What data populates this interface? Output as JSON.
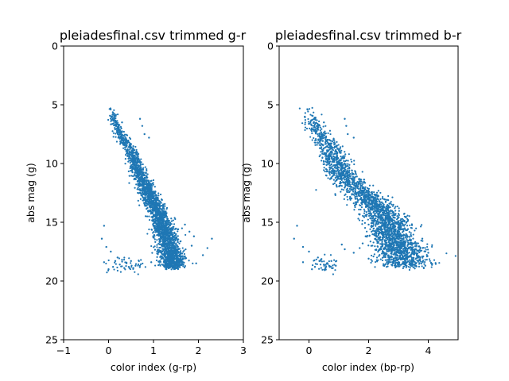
{
  "chart_data": [
    {
      "type": "scatter",
      "title": "pleiadesfinal.csv trimmed g-r",
      "xlabel": "color index (g-rp)",
      "ylabel": "abs mag (g)",
      "xlim": [
        -1,
        3
      ],
      "ylim": [
        25,
        0
      ],
      "y_inverted": true,
      "xticks": [
        "−1",
        "0",
        "1",
        "2",
        "3"
      ],
      "yticks": [
        "0",
        "5",
        "10",
        "15",
        "20",
        "25"
      ],
      "grid": false,
      "legend": "none",
      "series": [
        {
          "color": "#1f77b4",
          "main_sequence": [
            [
              0.05,
              5.2
            ],
            [
              0.1,
              5.6
            ],
            [
              0.12,
              6.3
            ],
            [
              0.2,
              7.0
            ],
            [
              0.3,
              7.8
            ],
            [
              0.4,
              8.3
            ],
            [
              0.5,
              8.9
            ],
            [
              0.55,
              9.5
            ],
            [
              0.6,
              10.0
            ],
            [
              0.65,
              10.6
            ],
            [
              0.72,
              11.2
            ],
            [
              0.8,
              11.8
            ],
            [
              0.88,
              12.4
            ],
            [
              0.95,
              13.0
            ],
            [
              1.02,
              13.6
            ],
            [
              1.1,
              14.2
            ],
            [
              1.17,
              14.8
            ],
            [
              1.22,
              15.4
            ],
            [
              1.27,
              16.0
            ],
            [
              1.31,
              16.6
            ],
            [
              1.35,
              17.2
            ],
            [
              1.38,
              17.8
            ],
            [
              1.41,
              18.3
            ],
            [
              1.43,
              18.9
            ]
          ],
          "main_sequence_scatter_width": 0.09,
          "outliers": [
            [
              0.7,
              6.2
            ],
            [
              0.75,
              6.8
            ],
            [
              0.8,
              7.5
            ],
            [
              0.9,
              7.8
            ],
            [
              0.3,
              6.5
            ],
            [
              0.2,
              6.9
            ],
            [
              1.7,
              15.2
            ],
            [
              1.8,
              15.8
            ],
            [
              1.9,
              16.2
            ],
            [
              2.3,
              16.4
            ],
            [
              2.2,
              17.2
            ],
            [
              1.6,
              17.6
            ],
            [
              1.7,
              18.1
            ],
            [
              1.5,
              16.8
            ],
            [
              1.85,
              17.0
            ],
            [
              1.55,
              15.6
            ],
            [
              2.1,
              17.8
            ],
            [
              1.95,
              18.5
            ],
            [
              0.95,
              18.4
            ],
            [
              -0.1,
              15.3
            ],
            [
              -0.15,
              16.4
            ],
            [
              -0.05,
              17.1
            ],
            [
              0.05,
              17.5
            ],
            [
              0.2,
              18.0
            ],
            [
              0.3,
              18.2
            ],
            [
              0.4,
              18.5
            ],
            [
              0.45,
              18.8
            ],
            [
              0.55,
              18.9
            ],
            [
              0.25,
              18.6
            ],
            [
              0.1,
              18.8
            ],
            [
              -0.1,
              18.4
            ],
            [
              0.35,
              18.9
            ],
            [
              0.6,
              18.7
            ],
            [
              0.5,
              18.3
            ],
            [
              0.15,
              18.3
            ],
            [
              0.0,
              19.0
            ]
          ],
          "faint_blob_center": [
            0.4,
            18.6
          ]
        }
      ]
    },
    {
      "type": "scatter",
      "title": "pleiadesfinal.csv trimmed b-r",
      "xlabel": "color index (bp-rp)",
      "ylabel": "abs mag (g)",
      "xlim": [
        -1,
        5
      ],
      "ylim": [
        25,
        0
      ],
      "y_inverted": true,
      "xticks": [
        "0",
        "2",
        "4"
      ],
      "yticks": [
        "0",
        "5",
        "10",
        "15",
        "20",
        "25"
      ],
      "grid": false,
      "legend": "none",
      "series": [
        {
          "color": "#1f77b4",
          "main_sequence": [
            [
              0.0,
              5.2
            ],
            [
              0.05,
              5.6
            ],
            [
              0.1,
              6.3
            ],
            [
              0.25,
              7.0
            ],
            [
              0.45,
              7.8
            ],
            [
              0.6,
              8.3
            ],
            [
              0.75,
              8.9
            ],
            [
              0.85,
              9.5
            ],
            [
              0.95,
              10.0
            ],
            [
              1.05,
              10.6
            ],
            [
              1.2,
              11.2
            ],
            [
              1.45,
              11.8
            ],
            [
              1.7,
              12.4
            ],
            [
              1.95,
              13.0
            ],
            [
              2.2,
              13.6
            ],
            [
              2.45,
              14.2
            ],
            [
              2.6,
              14.8
            ],
            [
              2.7,
              15.4
            ],
            [
              2.8,
              16.0
            ],
            [
              2.9,
              16.6
            ],
            [
              3.0,
              17.2
            ],
            [
              3.1,
              17.8
            ],
            [
              3.2,
              18.3
            ],
            [
              3.3,
              18.8
            ]
          ],
          "main_sequence_scatter_width": 0.28,
          "outliers": [
            [
              1.2,
              6.2
            ],
            [
              1.25,
              6.8
            ],
            [
              1.3,
              7.5
            ],
            [
              1.5,
              7.8
            ],
            [
              0.5,
              6.5
            ],
            [
              0.3,
              6.9
            ],
            [
              2.0,
              15.2
            ],
            [
              2.1,
              15.8
            ],
            [
              1.9,
              16.2
            ],
            [
              1.7,
              17.2
            ],
            [
              1.5,
              17.6
            ],
            [
              2.0,
              18.1
            ],
            [
              1.8,
              16.8
            ],
            [
              3.8,
              16.4
            ],
            [
              4.0,
              17.6
            ],
            [
              4.1,
              18.5
            ],
            [
              3.9,
              18.7
            ],
            [
              1.2,
              17.3
            ],
            [
              1.1,
              16.9
            ],
            [
              -0.4,
              15.3
            ],
            [
              -0.5,
              16.4
            ],
            [
              -0.2,
              17.1
            ],
            [
              0.0,
              17.5
            ],
            [
              0.3,
              18.0
            ],
            [
              0.4,
              18.2
            ],
            [
              0.6,
              18.5
            ],
            [
              0.7,
              18.8
            ],
            [
              0.8,
              18.9
            ],
            [
              0.5,
              18.6
            ],
            [
              0.2,
              18.8
            ],
            [
              -0.2,
              18.4
            ],
            [
              0.55,
              18.9
            ],
            [
              0.9,
              18.7
            ],
            [
              0.75,
              18.3
            ],
            [
              0.35,
              18.3
            ],
            [
              0.1,
              19.0
            ]
          ],
          "faint_blob_center": [
            0.6,
            18.6
          ]
        }
      ]
    }
  ]
}
